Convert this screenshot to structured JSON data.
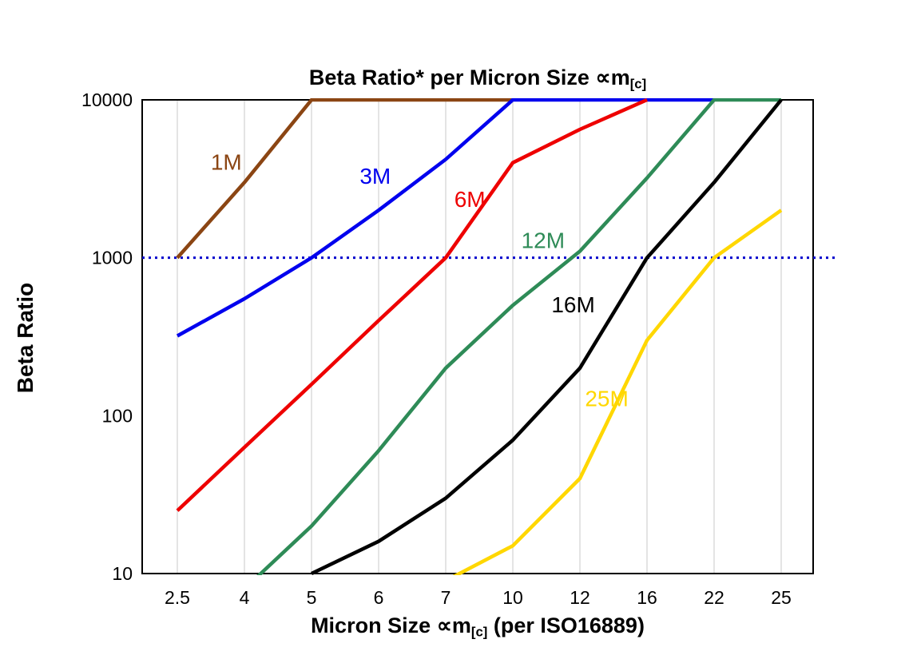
{
  "title": {
    "part1": "Beta Ratio* per Micron Size ∝m",
    "sub": "[c]"
  },
  "y_axis": {
    "label": "Beta Ratio"
  },
  "x_axis": {
    "label_part1": "Micron Size ∝m",
    "label_sub": "[c]",
    "label_part2": " (per ISO16889)"
  },
  "chart_data": {
    "type": "line",
    "title": "Beta Ratio* per Micron Size ∝m[c]",
    "xlabel": "Micron Size ∝m[c] (per ISO16889)",
    "ylabel": "Beta Ratio",
    "x_categories": [
      "2.5",
      "4",
      "5",
      "6",
      "7",
      "10",
      "12",
      "16",
      "22",
      "25"
    ],
    "y_scale": "log",
    "ylim": [
      10,
      10000
    ],
    "y_ticks": [
      10000,
      1000,
      100,
      10
    ],
    "grid": "vertical-only",
    "grid_color": "#c8c8c8",
    "reference_line": {
      "y": 1000,
      "color": "#0000cc",
      "style": "dotted"
    },
    "series": [
      {
        "name": "1M",
        "color": "#8B4513",
        "values": [
          1000,
          3000,
          10000,
          10000,
          10000,
          10000,
          null,
          null,
          null,
          null
        ],
        "label_pos": [
          0.73,
          3600
        ]
      },
      {
        "name": "3M",
        "color": "#0000EE",
        "values": [
          320,
          550,
          1000,
          2000,
          4200,
          10000,
          10000,
          10000,
          10000,
          null
        ],
        "label_pos": [
          2.95,
          2950
        ]
      },
      {
        "name": "6M",
        "color": "#EE0000",
        "values": [
          25,
          63,
          158,
          400,
          1000,
          4000,
          6500,
          10000,
          null,
          null
        ],
        "label_pos": [
          4.36,
          2100
        ]
      },
      {
        "name": "12M",
        "color": "#2E8B57",
        "values": [
          null,
          8,
          20,
          60,
          200,
          500,
          1100,
          3200,
          10000,
          10000
        ],
        "label_pos": [
          5.45,
          1150
        ]
      },
      {
        "name": "16M",
        "color": "#000000",
        "values": [
          null,
          null,
          10,
          16,
          30,
          70,
          200,
          1000,
          3000,
          10000
        ],
        "label_pos": [
          5.9,
          450
        ]
      },
      {
        "name": "25M",
        "color": "#FFD700",
        "values": [
          null,
          null,
          null,
          null,
          9,
          15,
          40,
          300,
          1000,
          2000
        ],
        "label_pos": [
          6.4,
          115
        ]
      }
    ]
  }
}
